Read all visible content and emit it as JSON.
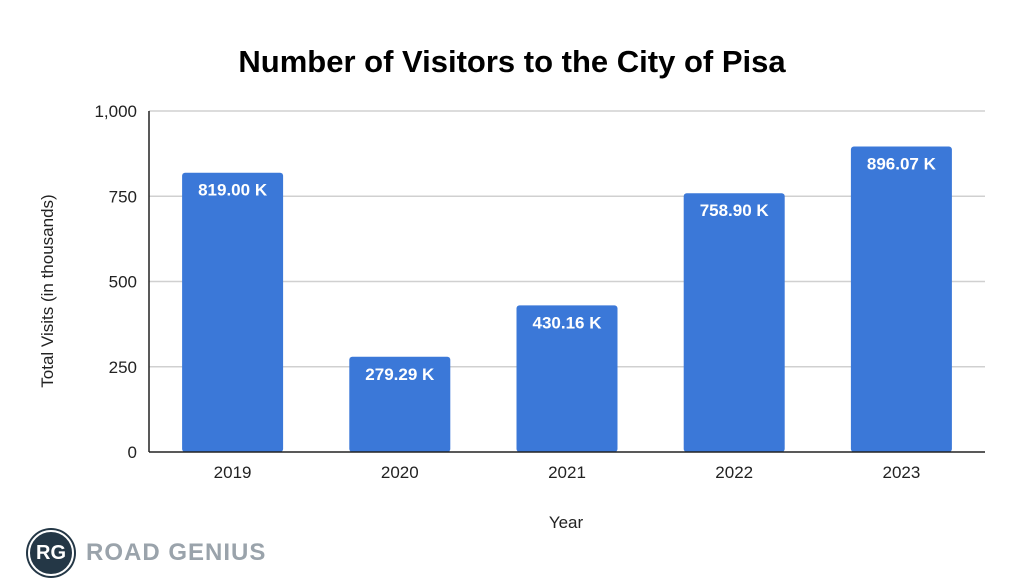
{
  "chart_data": {
    "type": "bar",
    "title": "Number of Visitors to the City of Pisa",
    "xlabel": "Year",
    "ylabel": "Total Visits (in thousands)",
    "categories": [
      "2019",
      "2020",
      "2021",
      "2022",
      "2023"
    ],
    "values": [
      819.0,
      279.29,
      430.16,
      758.9,
      896.07
    ],
    "data_labels": [
      "819.00 K",
      "279.29 K",
      "430.16 K",
      "758.90 K",
      "896.07 K"
    ],
    "ylim": [
      0,
      1000
    ],
    "yticks": [
      0,
      250,
      500,
      750,
      1000
    ],
    "ytick_labels": [
      "0",
      "250",
      "500",
      "750",
      "1,000"
    ],
    "grid": true,
    "legend": "none",
    "bar_color": "#3b78d8"
  },
  "logo": {
    "badge": "RG",
    "text": "ROAD GENIUS"
  }
}
